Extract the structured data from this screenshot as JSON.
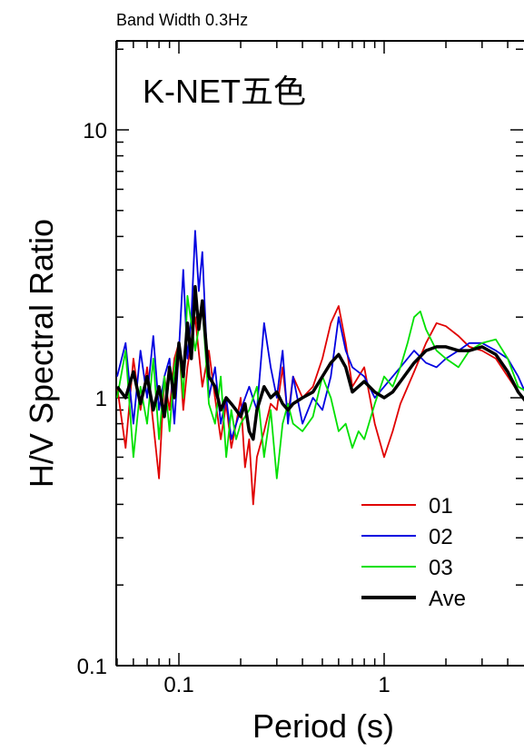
{
  "chart_data": {
    "type": "line",
    "title": "Band Width 0.3Hz",
    "annotation": "K-NET五色",
    "xlabel": "Period (s)",
    "ylabel": "H/V Spectral Ratio",
    "x_scale": "log",
    "y_scale": "log",
    "xlim": [
      0.05,
      5
    ],
    "ylim": [
      0.1,
      20
    ],
    "x_tick_labels": [
      {
        "value": 0.1,
        "label": "0.1"
      },
      {
        "value": 1,
        "label": "1"
      }
    ],
    "y_tick_labels": [
      {
        "value": 0.1,
        "label": "0.1"
      },
      {
        "value": 1,
        "label": "1"
      },
      {
        "value": 10,
        "label": "10"
      }
    ],
    "legend_position": "bottom-right",
    "series": [
      {
        "name": "01",
        "color": "#e00000",
        "x": [
          0.05,
          0.055,
          0.06,
          0.065,
          0.07,
          0.075,
          0.08,
          0.085,
          0.09,
          0.095,
          0.1,
          0.105,
          0.11,
          0.12,
          0.13,
          0.14,
          0.15,
          0.16,
          0.17,
          0.18,
          0.19,
          0.2,
          0.21,
          0.22,
          0.23,
          0.24,
          0.26,
          0.28,
          0.3,
          0.32,
          0.34,
          0.36,
          0.4,
          0.45,
          0.5,
          0.55,
          0.6,
          0.65,
          0.7,
          0.8,
          0.9,
          1.0,
          1.1,
          1.2,
          1.4,
          1.6,
          1.8,
          2.0,
          2.3,
          2.6,
          3.0,
          3.5,
          4.0,
          4.5,
          5.0
        ],
        "y": [
          1.1,
          0.65,
          1.4,
          0.9,
          1.3,
          0.8,
          0.5,
          1.2,
          0.9,
          1.4,
          1.6,
          0.9,
          1.3,
          2.0,
          1.1,
          1.5,
          1.0,
          0.7,
          0.95,
          0.65,
          0.8,
          1.0,
          0.55,
          0.7,
          0.4,
          0.6,
          0.75,
          0.95,
          0.9,
          1.3,
          0.85,
          1.2,
          1.0,
          1.1,
          1.4,
          1.9,
          2.2,
          1.6,
          1.1,
          1.3,
          0.8,
          0.6,
          0.75,
          0.95,
          1.25,
          1.6,
          1.9,
          1.85,
          1.7,
          1.55,
          1.5,
          1.4,
          1.2,
          1.05,
          0.95
        ]
      },
      {
        "name": "02",
        "color": "#0000e0",
        "x": [
          0.05,
          0.055,
          0.06,
          0.065,
          0.07,
          0.075,
          0.08,
          0.085,
          0.09,
          0.095,
          0.1,
          0.105,
          0.11,
          0.115,
          0.12,
          0.125,
          0.13,
          0.14,
          0.15,
          0.16,
          0.17,
          0.18,
          0.2,
          0.22,
          0.24,
          0.26,
          0.28,
          0.3,
          0.32,
          0.34,
          0.36,
          0.4,
          0.45,
          0.5,
          0.55,
          0.6,
          0.65,
          0.7,
          0.8,
          0.9,
          1.0,
          1.2,
          1.4,
          1.6,
          1.8,
          2.0,
          2.3,
          2.6,
          3.0,
          3.5,
          4.0,
          4.5,
          5.0
        ],
        "y": [
          1.2,
          1.6,
          0.8,
          1.5,
          1.0,
          1.7,
          0.9,
          1.2,
          1.4,
          0.8,
          1.5,
          3.0,
          1.4,
          2.0,
          4.2,
          2.5,
          3.5,
          1.0,
          1.3,
          0.8,
          1.0,
          0.7,
          0.9,
          1.1,
          0.9,
          1.9,
          1.3,
          1.0,
          1.5,
          0.8,
          1.2,
          0.8,
          1.0,
          0.9,
          1.2,
          2.0,
          1.5,
          1.3,
          1.2,
          1.0,
          1.1,
          1.3,
          1.5,
          1.35,
          1.3,
          1.4,
          1.5,
          1.6,
          1.6,
          1.5,
          1.4,
          1.2,
          1.0
        ]
      },
      {
        "name": "03",
        "color": "#00e000",
        "x": [
          0.05,
          0.055,
          0.06,
          0.065,
          0.07,
          0.075,
          0.08,
          0.085,
          0.09,
          0.095,
          0.1,
          0.105,
          0.11,
          0.12,
          0.13,
          0.14,
          0.15,
          0.16,
          0.17,
          0.18,
          0.19,
          0.2,
          0.22,
          0.24,
          0.26,
          0.28,
          0.3,
          0.32,
          0.34,
          0.36,
          0.4,
          0.45,
          0.5,
          0.55,
          0.6,
          0.65,
          0.7,
          0.75,
          0.8,
          0.9,
          1.0,
          1.1,
          1.2,
          1.3,
          1.4,
          1.5,
          1.6,
          1.8,
          2.0,
          2.3,
          2.6,
          3.0,
          3.5,
          4.0,
          4.5,
          5.0
        ],
        "y": [
          1.0,
          1.5,
          0.6,
          1.1,
          0.8,
          1.4,
          0.7,
          1.2,
          0.75,
          1.3,
          1.6,
          1.0,
          2.4,
          1.5,
          2.2,
          0.95,
          0.8,
          1.2,
          0.6,
          0.9,
          0.7,
          0.8,
          0.9,
          1.1,
          0.6,
          0.9,
          0.5,
          0.8,
          0.95,
          0.8,
          0.75,
          0.85,
          1.2,
          1.0,
          0.75,
          0.8,
          0.65,
          0.75,
          0.7,
          0.95,
          1.2,
          1.1,
          1.3,
          1.6,
          2.0,
          2.1,
          1.8,
          1.5,
          1.4,
          1.3,
          1.5,
          1.6,
          1.65,
          1.4,
          1.1,
          1.05
        ]
      },
      {
        "name": "Ave",
        "color": "#000000",
        "x": [
          0.05,
          0.055,
          0.06,
          0.065,
          0.07,
          0.075,
          0.08,
          0.085,
          0.09,
          0.095,
          0.1,
          0.105,
          0.11,
          0.115,
          0.12,
          0.125,
          0.13,
          0.14,
          0.15,
          0.16,
          0.17,
          0.18,
          0.19,
          0.2,
          0.21,
          0.22,
          0.23,
          0.24,
          0.26,
          0.28,
          0.3,
          0.32,
          0.34,
          0.36,
          0.4,
          0.45,
          0.5,
          0.55,
          0.6,
          0.65,
          0.7,
          0.8,
          0.9,
          1.0,
          1.1,
          1.2,
          1.4,
          1.6,
          1.8,
          2.0,
          2.3,
          2.6,
          3.0,
          3.5,
          4.0,
          4.5,
          5.0
        ],
        "y": [
          1.1,
          1.0,
          1.25,
          0.95,
          1.2,
          0.9,
          1.1,
          0.85,
          1.3,
          1.0,
          1.6,
          1.2,
          1.9,
          1.4,
          2.6,
          1.8,
          2.3,
          1.2,
          1.1,
          0.9,
          1.0,
          0.95,
          0.9,
          0.85,
          0.95,
          0.75,
          0.7,
          0.9,
          1.1,
          1.0,
          1.05,
          0.95,
          0.9,
          0.95,
          1.0,
          1.05,
          1.2,
          1.35,
          1.45,
          1.3,
          1.05,
          1.15,
          1.05,
          1.0,
          1.05,
          1.15,
          1.35,
          1.5,
          1.55,
          1.55,
          1.5,
          1.5,
          1.55,
          1.45,
          1.25,
          1.05,
          0.95
        ]
      }
    ]
  }
}
